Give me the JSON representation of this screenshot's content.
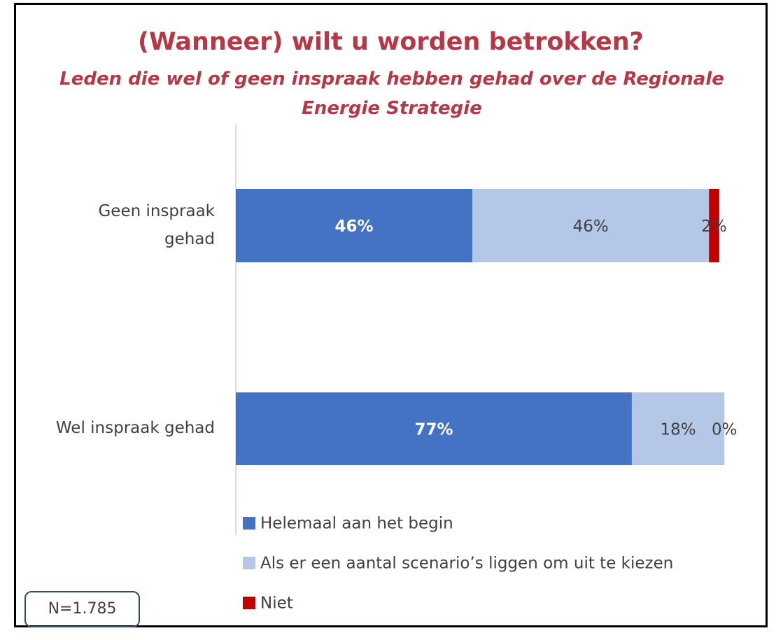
{
  "chart_data": {
    "type": "stacked-bar-horizontal",
    "title": "(Wanneer) wilt u worden betrokken?",
    "subtitle": "Leden die wel of geen inspraak hebben gehad over de Regionale Energie Strategie",
    "categories": [
      "Geen inspraak gehad",
      "Wel inspraak gehad"
    ],
    "series": [
      {
        "name": "Helemaal aan het begin",
        "color": "#4472c4",
        "values": [
          46,
          77
        ],
        "value_labels": [
          "46%",
          "77%"
        ]
      },
      {
        "name": "Als er een aantal scenario’s liggen om uit te kiezen",
        "color": "#b4c7e7",
        "values": [
          46,
          18
        ],
        "value_labels": [
          "46%",
          "18%"
        ]
      },
      {
        "name": "Niet",
        "color": "#c00000",
        "values": [
          2,
          0
        ],
        "value_labels": [
          "2%",
          "0%"
        ]
      }
    ],
    "xlim": [
      0,
      100
    ],
    "note": "N=1.785"
  }
}
